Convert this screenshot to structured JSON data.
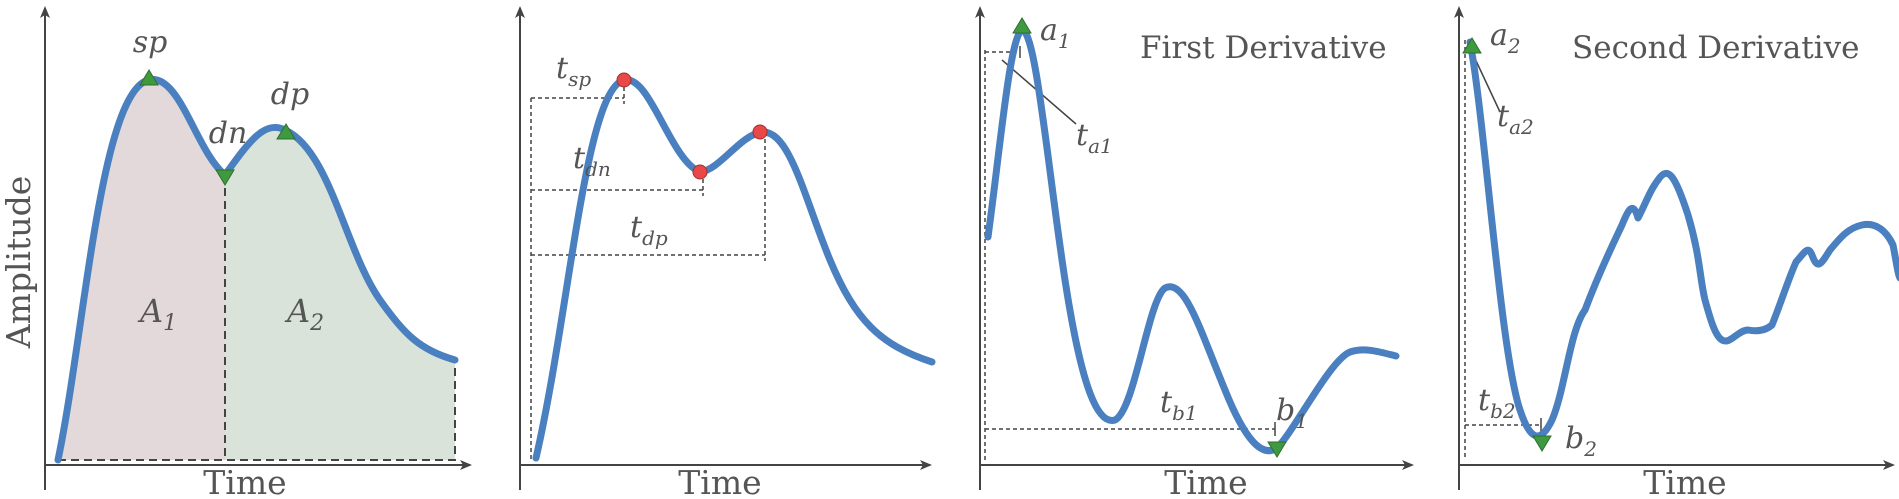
{
  "panels": {
    "p1": {
      "ylabel": "Amplitude",
      "xlabel": "Time",
      "markers": {
        "sp": "sp",
        "dn": "dn",
        "dp": "dp"
      },
      "areas": {
        "a1": "A",
        "a1_sub": "1",
        "a2": "A",
        "a2_sub": "2"
      }
    },
    "p2": {
      "xlabel": "Time",
      "labels": {
        "tsp": "t",
        "tsp_sub": "sp",
        "tdn": "t",
        "tdn_sub": "dn",
        "tdp": "t",
        "tdp_sub": "dp"
      }
    },
    "p3": {
      "title": "First Derivative",
      "xlabel": "Time",
      "labels": {
        "a1": "a",
        "a1_sub": "1",
        "ta1": "t",
        "ta1_sub": "a1",
        "tb1": "t",
        "tb1_sub": "b1",
        "b1": "b",
        "b1_sub": "1"
      }
    },
    "p4": {
      "title": "Second Derivative",
      "xlabel": "Time",
      "labels": {
        "a2": "a",
        "a2_sub": "2",
        "ta2": "t",
        "ta2_sub": "a2",
        "tb2": "t",
        "tb2_sub": "b2",
        "b2": "b",
        "b2_sub": "2"
      }
    }
  },
  "colors": {
    "curve": "#4a80c0",
    "area1": "#e3d9db",
    "area2": "#d9e3da",
    "triangle": "#3f9a3f",
    "dot": "#e84848"
  }
}
